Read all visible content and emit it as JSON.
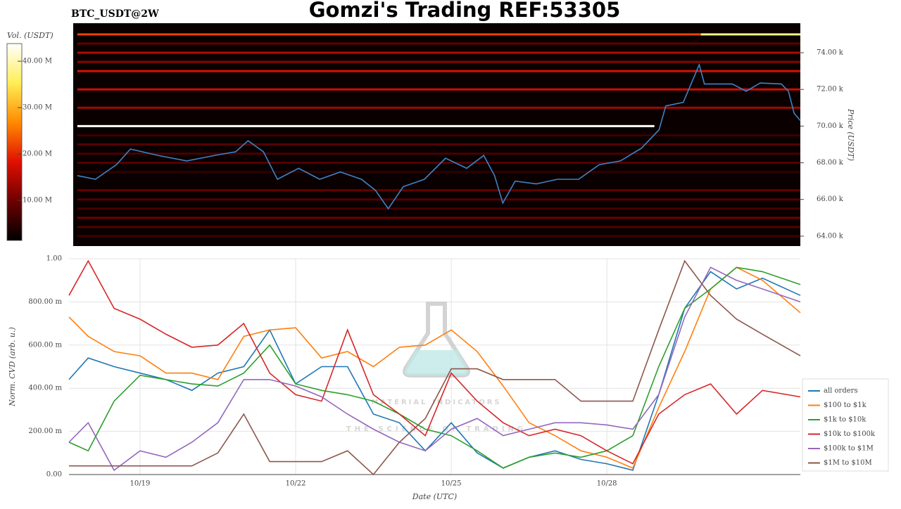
{
  "page_title": "Gomzi's Trading REF:53305",
  "watermark": {
    "title": "MATERIAL INDICATORS",
    "subtitle": "THE SCIENCE OF TRADING"
  },
  "chart_data": [
    {
      "type": "heatmap",
      "title": "BTC_USDT@2W",
      "ylabel": "Price (USDT)",
      "xlim": [
        17.63,
        31.73
      ],
      "ylim": [
        63460,
        75610
      ],
      "yticks": [
        {
          "value": 64000,
          "label": "64.00 k"
        },
        {
          "value": 66000,
          "label": "66.00 k"
        },
        {
          "value": 68000,
          "label": "68.00 k"
        },
        {
          "value": 70000,
          "label": "70.00 k"
        },
        {
          "value": 72000,
          "label": "72.00 k"
        },
        {
          "value": 74000,
          "label": "74.00 k"
        }
      ],
      "color": "#3b84c6",
      "x": [
        17.71,
        18.06,
        18.47,
        18.74,
        19.28,
        19.83,
        20.37,
        20.78,
        21.02,
        21.32,
        21.59,
        22.0,
        22.41,
        22.81,
        23.22,
        23.49,
        23.74,
        24.03,
        24.44,
        24.85,
        25.26,
        25.59,
        25.8,
        25.96,
        26.2,
        26.61,
        27.02,
        27.43,
        27.83,
        28.24,
        28.65,
        28.99,
        29.12,
        29.46,
        29.77,
        29.87,
        30.41,
        30.68,
        30.95,
        31.36,
        31.5,
        31.61,
        31.73
      ],
      "values": [
        67300,
        67100,
        67900,
        68750,
        68400,
        68100,
        68400,
        68600,
        69200,
        68600,
        67100,
        67700,
        67100,
        67500,
        67100,
        66500,
        65500,
        66700,
        67100,
        68250,
        67700,
        68400,
        67300,
        65800,
        67000,
        66850,
        67100,
        67100,
        67900,
        68100,
        68800,
        69800,
        71100,
        71300,
        73350,
        72300,
        72300,
        71900,
        72350,
        72300,
        71900,
        70700,
        70300
      ],
      "colorscale": [
        "#000000",
        "#6e0000",
        "#e01000",
        "#ff8a00",
        "#ffee55",
        "#ffffff"
      ],
      "colorbar": {
        "title": "Vol. (USDT)",
        "lim": [
          1360000,
          43800000
        ],
        "ticks": [
          {
            "value": 10000000,
            "label": "10.00 M"
          },
          {
            "value": 20000000,
            "label": "20.00 M"
          },
          {
            "value": 30000000,
            "label": "30.00 M"
          },
          {
            "value": 40000000,
            "label": "40.00 M"
          }
        ]
      },
      "levels": [
        {
          "price": 75000,
          "x0": 17.71,
          "x1": 29.8,
          "volume": 22000000
        },
        {
          "price": 75000,
          "x0": 29.8,
          "x1": 31.73,
          "volume": 38000000
        },
        {
          "price": 74500,
          "x0": 17.71,
          "x1": 31.73,
          "volume": 9000000
        },
        {
          "price": 74000,
          "x0": 17.71,
          "x1": 31.73,
          "volume": 15000000
        },
        {
          "price": 73500,
          "x0": 17.71,
          "x1": 31.73,
          "volume": 12000000
        },
        {
          "price": 73000,
          "x0": 17.71,
          "x1": 31.73,
          "volume": 18000000
        },
        {
          "price": 72000,
          "x0": 17.71,
          "x1": 31.73,
          "volume": 17000000
        },
        {
          "price": 71000,
          "x0": 17.71,
          "x1": 31.73,
          "volume": 14000000
        },
        {
          "price": 70000,
          "x0": 17.71,
          "x1": 28.9,
          "volume": 43500000
        },
        {
          "price": 69500,
          "x0": 17.71,
          "x1": 31.73,
          "volume": 6000000
        },
        {
          "price": 69000,
          "x0": 17.71,
          "x1": 31.73,
          "volume": 8000000
        },
        {
          "price": 68500,
          "x0": 17.71,
          "x1": 31.73,
          "volume": 7000000
        },
        {
          "price": 68000,
          "x0": 17.71,
          "x1": 31.73,
          "volume": 8000000
        },
        {
          "price": 67500,
          "x0": 17.71,
          "x1": 31.73,
          "volume": 5000000
        },
        {
          "price": 66500,
          "x0": 17.71,
          "x1": 31.73,
          "volume": 9000000
        },
        {
          "price": 66000,
          "x0": 17.71,
          "x1": 31.73,
          "volume": 8000000
        },
        {
          "price": 65500,
          "x0": 17.71,
          "x1": 31.73,
          "volume": 7000000
        },
        {
          "price": 65000,
          "x0": 17.71,
          "x1": 31.73,
          "volume": 10000000
        },
        {
          "price": 64500,
          "x0": 17.71,
          "x1": 31.73,
          "volume": 8000000
        },
        {
          "price": 64000,
          "x0": 17.71,
          "x1": 31.73,
          "volume": 6000000
        }
      ]
    },
    {
      "type": "line",
      "xlabel": "Date (UTC)",
      "ylabel": "Norm. CVD (arb. u.)",
      "grid": true,
      "legend": "right",
      "xlim": [
        17.63,
        31.73
      ],
      "xticks": [
        {
          "value": 19,
          "label": "10/19"
        },
        {
          "value": 22,
          "label": "10/22"
        },
        {
          "value": 25,
          "label": "10/25"
        },
        {
          "value": 28,
          "label": "10/28"
        }
      ],
      "ylim": [
        0,
        1
      ],
      "yticks": [
        {
          "value": 0,
          "label": "0.00"
        },
        {
          "value": 0.2,
          "label": "200.00 m"
        },
        {
          "value": 0.4,
          "label": "400.00 m"
        },
        {
          "value": 0.6,
          "label": "600.00 m"
        },
        {
          "value": 0.8,
          "label": "800.00 m"
        },
        {
          "value": 1,
          "label": "1.00"
        }
      ],
      "x": [
        17.63,
        18,
        18.5,
        19,
        19.5,
        20,
        20.5,
        21,
        21.5,
        22,
        22.5,
        23,
        23.5,
        24,
        24.5,
        25,
        25.5,
        26,
        26.5,
        27,
        27.5,
        28,
        28.5,
        29,
        29.5,
        30,
        30.5,
        31,
        31.73
      ],
      "series": [
        {
          "name": "all orders",
          "color": "#1f77b4",
          "values": [
            0.44,
            0.54,
            0.5,
            0.47,
            0.44,
            0.39,
            0.47,
            0.5,
            0.67,
            0.42,
            0.5,
            0.5,
            0.28,
            0.24,
            0.11,
            0.24,
            0.1,
            0.03,
            0.08,
            0.11,
            0.07,
            0.05,
            0.02,
            0.37,
            0.77,
            0.94,
            0.86,
            0.91,
            0.83
          ]
        },
        {
          "name": "$100 to $1k",
          "color": "#ff7f0e",
          "values": [
            0.73,
            0.64,
            0.57,
            0.55,
            0.47,
            0.47,
            0.44,
            0.64,
            0.67,
            0.68,
            0.54,
            0.57,
            0.5,
            0.59,
            0.6,
            0.67,
            0.57,
            0.41,
            0.24,
            0.18,
            0.11,
            0.08,
            0.03,
            0.31,
            0.57,
            0.86,
            0.96,
            0.9,
            0.75
          ]
        },
        {
          "name": "$1k to $10k",
          "color": "#2ca02c",
          "values": [
            0.15,
            0.11,
            0.34,
            0.46,
            0.44,
            0.42,
            0.41,
            0.47,
            0.6,
            0.42,
            0.39,
            0.37,
            0.34,
            0.28,
            0.21,
            0.18,
            0.11,
            0.03,
            0.08,
            0.1,
            0.08,
            0.11,
            0.18,
            0.5,
            0.77,
            0.86,
            0.96,
            0.94,
            0.88
          ]
        },
        {
          "name": "$10k to $100k",
          "color": "#d62728",
          "values": [
            0.83,
            0.99,
            0.77,
            0.72,
            0.65,
            0.59,
            0.6,
            0.7,
            0.47,
            0.37,
            0.34,
            0.67,
            0.37,
            0.28,
            0.18,
            0.47,
            0.34,
            0.24,
            0.18,
            0.21,
            0.18,
            0.11,
            0.05,
            0.28,
            0.37,
            0.42,
            0.28,
            0.39,
            0.36
          ]
        },
        {
          "name": "$100k to $1M",
          "color": "#9467bd",
          "values": [
            0.15,
            0.24,
            0.02,
            0.11,
            0.08,
            0.15,
            0.24,
            0.44,
            0.44,
            0.41,
            0.36,
            0.28,
            0.21,
            0.15,
            0.11,
            0.21,
            0.26,
            0.18,
            0.21,
            0.24,
            0.24,
            0.23,
            0.21,
            0.37,
            0.73,
            0.96,
            0.9,
            0.86,
            0.8
          ]
        },
        {
          "name": "$1M to $10M",
          "color": "#8c564b",
          "values": [
            0.04,
            0.04,
            0.04,
            0.04,
            0.04,
            0.04,
            0.1,
            0.28,
            0.06,
            0.06,
            0.06,
            0.11,
            0.0,
            0.15,
            0.26,
            0.49,
            0.49,
            0.44,
            0.44,
            0.44,
            0.34,
            0.34,
            0.34,
            0.67,
            0.99,
            0.83,
            0.72,
            0.65,
            0.55
          ]
        }
      ]
    }
  ]
}
